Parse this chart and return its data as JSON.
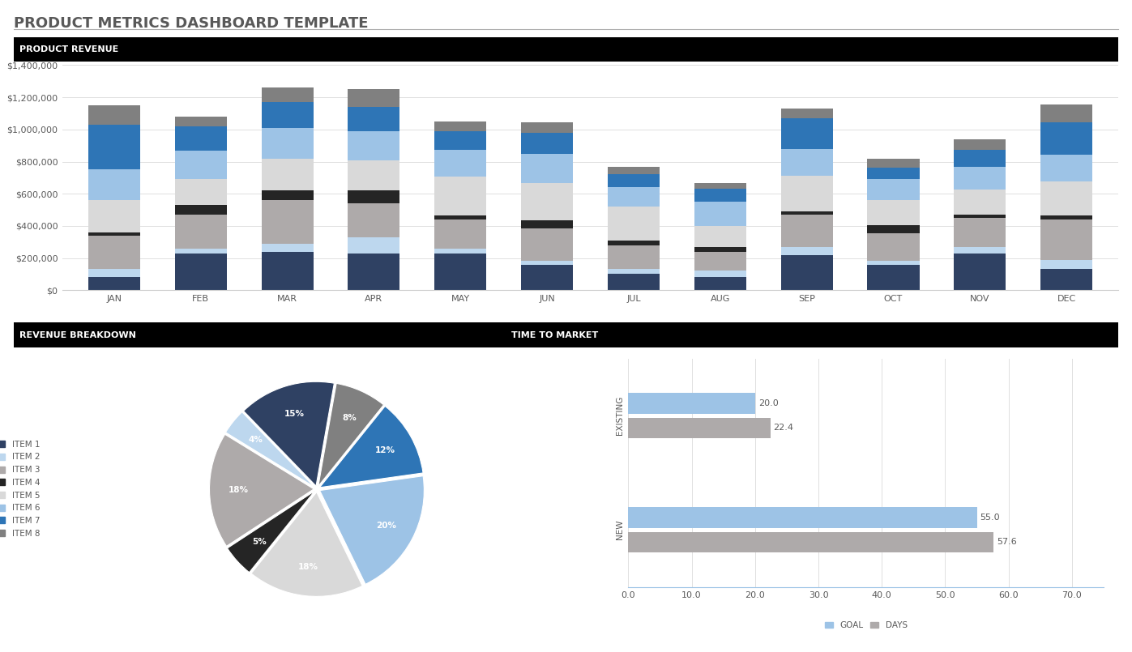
{
  "title": "PRODUCT METRICS DASHBOARD TEMPLATE",
  "title_color": "#595959",
  "background_color": "#ffffff",
  "bar_chart": {
    "title": "PRODUCT REVENUE",
    "months": [
      "JAN",
      "FEB",
      "MAR",
      "APR",
      "MAY",
      "JUN",
      "JUL",
      "AUG",
      "SEP",
      "OCT",
      "NOV",
      "DEC"
    ],
    "ylim": [
      0,
      1400000
    ],
    "yticks": [
      0,
      200000,
      400000,
      600000,
      800000,
      1000000,
      1200000,
      1400000
    ],
    "ytick_labels": [
      "$0",
      "$200,000",
      "$400,000",
      "$600,000",
      "$800,000",
      "$1,000,000",
      "$1,200,000",
      "$1,400,000"
    ],
    "items": {
      "ITEM 1": {
        "color": "#2F4163",
        "values": [
          80000,
          230000,
          240000,
          230000,
          230000,
          155000,
          100000,
          80000,
          220000,
          155000,
          230000,
          130000
        ]
      },
      "ITEM 2": {
        "color": "#BDD7EE",
        "values": [
          50000,
          30000,
          50000,
          100000,
          30000,
          30000,
          30000,
          40000,
          50000,
          30000,
          40000,
          60000
        ]
      },
      "ITEM 3": {
        "color": "#AEAAAA",
        "values": [
          210000,
          210000,
          270000,
          210000,
          180000,
          200000,
          150000,
          120000,
          200000,
          170000,
          180000,
          250000
        ]
      },
      "ITEM 4": {
        "color": "#252525",
        "values": [
          20000,
          60000,
          60000,
          80000,
          25000,
          50000,
          30000,
          30000,
          20000,
          50000,
          20000,
          25000
        ]
      },
      "ITEM 5": {
        "color": "#D9D9D9",
        "values": [
          200000,
          160000,
          200000,
          190000,
          240000,
          230000,
          210000,
          130000,
          220000,
          155000,
          155000,
          210000
        ]
      },
      "ITEM 6": {
        "color": "#9DC3E6",
        "values": [
          190000,
          180000,
          190000,
          180000,
          170000,
          185000,
          120000,
          150000,
          170000,
          130000,
          140000,
          170000
        ]
      },
      "ITEM 7": {
        "color": "#2E75B6",
        "values": [
          280000,
          150000,
          160000,
          150000,
          115000,
          130000,
          80000,
          80000,
          190000,
          70000,
          110000,
          200000
        ]
      },
      "ITEM 8": {
        "color": "#808080",
        "values": [
          120000,
          60000,
          90000,
          110000,
          60000,
          65000,
          45000,
          35000,
          60000,
          60000,
          65000,
          110000
        ]
      }
    }
  },
  "pie_chart": {
    "title": "REVENUE BREAKDOWN",
    "items": [
      "ITEM 1",
      "ITEM 2",
      "ITEM 3",
      "ITEM 4",
      "ITEM 5",
      "ITEM 6",
      "ITEM 7",
      "ITEM 8"
    ],
    "values": [
      15,
      4,
      18,
      5,
      18,
      20,
      12,
      8
    ],
    "colors": [
      "#2F4163",
      "#BDD7EE",
      "#AEAAAA",
      "#252525",
      "#D9D9D9",
      "#9DC3E6",
      "#2E75B6",
      "#808080"
    ],
    "explode": [
      0.03,
      0.03,
      0.03,
      0.03,
      0.03,
      0.03,
      0.03,
      0.03
    ]
  },
  "bar_h_chart": {
    "title": "TIME TO MARKET",
    "categories": [
      "EXISTING",
      "NEW"
    ],
    "goal_values": [
      20.0,
      55.0
    ],
    "days_values": [
      22.4,
      57.6
    ],
    "goal_color": "#9DC3E6",
    "days_color": "#AEAAAA",
    "xlim": [
      0,
      75
    ],
    "xticks": [
      0.0,
      10.0,
      20.0,
      30.0,
      40.0,
      50.0,
      60.0,
      70.0
    ]
  }
}
